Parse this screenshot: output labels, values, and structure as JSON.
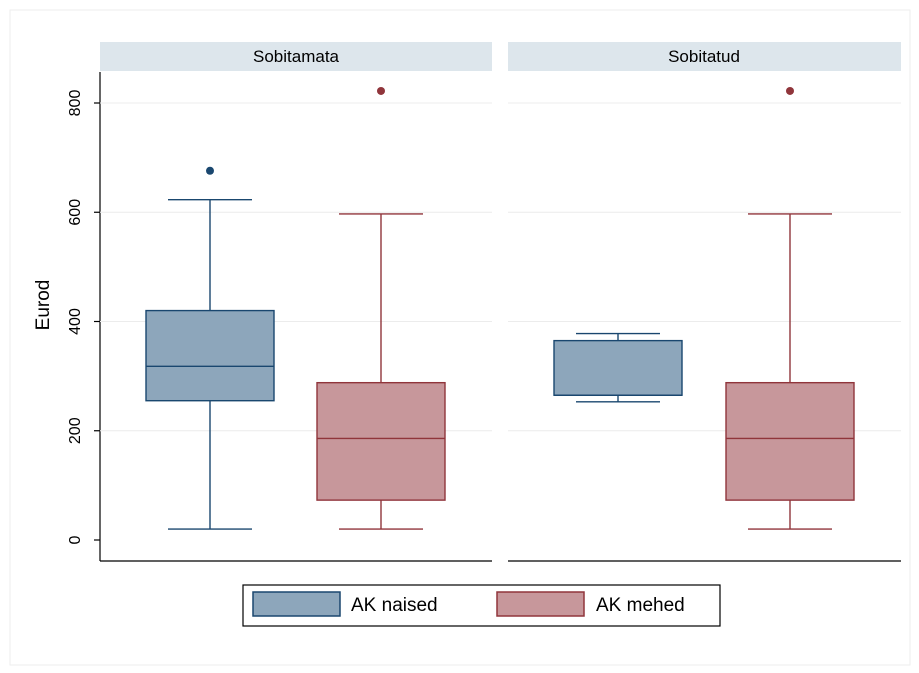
{
  "chart_data": {
    "type": "box",
    "ylabel": "Eurod",
    "ylim": [
      0,
      850
    ],
    "yticks": [
      0,
      200,
      400,
      600,
      800
    ],
    "grid": true,
    "legend_position": "bottom",
    "panels": [
      {
        "title": "Sobitamata",
        "boxes": [
          {
            "series": "AK naised",
            "whisker_low": 20,
            "q1": 255,
            "median": 318,
            "q3": 420,
            "whisker_high": 623,
            "outliers": [
              676
            ]
          },
          {
            "series": "AK mehed",
            "whisker_low": 20,
            "q1": 73,
            "median": 186,
            "q3": 288,
            "whisker_high": 597,
            "outliers": [
              822
            ]
          }
        ]
      },
      {
        "title": "Sobitatud",
        "boxes": [
          {
            "series": "AK naised",
            "whisker_low": 253,
            "q1": 265,
            "median": 265,
            "q3": 365,
            "whisker_high": 378,
            "outliers": []
          },
          {
            "series": "AK mehed",
            "whisker_low": 20,
            "q1": 73,
            "median": 186,
            "q3": 288,
            "whisker_high": 597,
            "outliers": [
              822
            ]
          }
        ]
      }
    ],
    "series": [
      {
        "name": "AK naised",
        "fill": "#8da6bb",
        "stroke": "#1a476f"
      },
      {
        "name": "AK mehed",
        "fill": "#c7979b",
        "stroke": "#90353b"
      }
    ]
  }
}
